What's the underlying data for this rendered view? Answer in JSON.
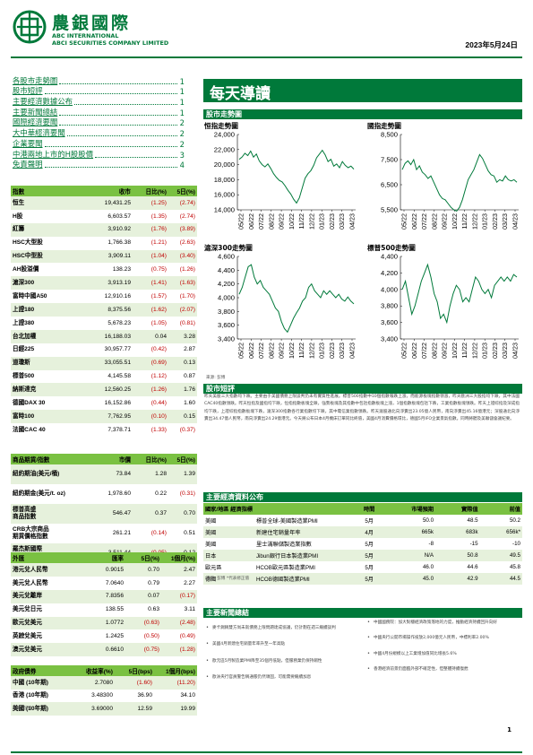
{
  "header": {
    "logo_cn": "農銀國際",
    "logo_en1": "ABC INTERNATIONAL",
    "logo_en2": "ABCI SECURITIES COMPANY LIMITED",
    "date": "2023年5月24日",
    "brand_color": "#00793A"
  },
  "toc": [
    {
      "label": "各股市走勢圖",
      "page": "1"
    },
    {
      "label": "股市短評",
      "page": "1"
    },
    {
      "label": "主要經濟數據公布",
      "page": "1"
    },
    {
      "label": "主要新聞總結",
      "page": "1"
    },
    {
      "label": "國際經濟要聞",
      "page": "2"
    },
    {
      "label": "大中華經濟要聞",
      "page": "2"
    },
    {
      "label": "企業要聞",
      "page": "2"
    },
    {
      "label": "中港兩地上市的H股股價",
      "page": "3"
    },
    {
      "label": "免責聲明",
      "page": "4"
    }
  ],
  "indices": {
    "headers": [
      "指數",
      "收市",
      "日比(%)",
      "5日(%)"
    ],
    "rows": [
      [
        "恒生",
        "19,431.25",
        "(1.25)",
        "(2.74)"
      ],
      [
        "H股",
        "6,603.57",
        "(1.35)",
        "(2.74)"
      ],
      [
        "紅籌",
        "3,910.92",
        "(1.76)",
        "(3.89)"
      ],
      [
        "HSC大型股",
        "1,766.38",
        "(1.21)",
        "(2.63)"
      ],
      [
        "HSC中型股",
        "3,909.11",
        "(1.04)",
        "(3.40)"
      ],
      [
        "AH股溢價",
        "138.23",
        "(0.75)",
        "(1.26)"
      ],
      [
        "滬深300",
        "3,913.19",
        "(1.41)",
        "(1.63)"
      ],
      [
        "富時中國A50",
        "12,910.16",
        "(1.57)",
        "(1.70)"
      ],
      [
        "上證180",
        "8,375.56",
        "(1.62)",
        "(2.07)"
      ],
      [
        "上證380",
        "5,678.23",
        "(1.05)",
        "(0.81)"
      ],
      [
        "台北加權",
        "16,188.03",
        "0.04",
        "3.28"
      ],
      [
        "日經225",
        "30,957.77",
        "(0.42)",
        "2.87"
      ],
      [
        "道瓊斯",
        "33,055.51",
        "(0.69)",
        "0.13"
      ],
      [
        "標普500",
        "4,145.58",
        "(1.12)",
        "0.87"
      ],
      [
        "納斯達克",
        "12,560.25",
        "(1.26)",
        "1.76"
      ],
      [
        "德國DAX 30",
        "16,152.86",
        "(0.44)",
        "1.60"
      ],
      [
        "富時100",
        "7,762.95",
        "(0.10)",
        "0.15"
      ],
      [
        "法國CAC 40",
        "7,378.71",
        "(1.33)",
        "(0.37)"
      ]
    ]
  },
  "commodities": {
    "headers": [
      "商品期貨/指數",
      "市價",
      "日比(%)",
      "5日(%)"
    ],
    "rows": [
      [
        "紐約期油(美元/桶)",
        "73.84",
        "1.28",
        "1.39"
      ],
      [
        "紐約期金(美元/t. oz)",
        "1,978.60",
        "0.22",
        "(0.31)"
      ],
      [
        "標普高盛\n商品指數",
        "546.47",
        "0.37",
        "0.70"
      ],
      [
        "CRB大宗商品\n期貨價格指數",
        "261.21",
        "(0.14)",
        "0.51"
      ],
      [
        "羅杰斯國際\n商品指數",
        "3,511.44",
        "(0.05)",
        "0.12"
      ]
    ]
  },
  "fx": {
    "headers": [
      "外匯",
      "匯率",
      "5日(%)",
      "1個月(%)"
    ],
    "rows": [
      [
        "港元兌人民幣",
        "0.9015",
        "0.70",
        "2.47"
      ],
      [
        "美元兌人民幣",
        "7.0640",
        "0.79",
        "2.27"
      ],
      [
        "美元兌離岸",
        "7.8356",
        "0.07",
        "(0.17)"
      ],
      [
        "美元兌日元",
        "138.55",
        "0.63",
        "3.11"
      ],
      [
        "歐元兌美元",
        "1.0772",
        "(0.63)",
        "(2.48)"
      ],
      [
        "英鎊兌美元",
        "1.2425",
        "(0.50)",
        "(0.49)"
      ],
      [
        "澳元兌美元",
        "0.6610",
        "(0.75)",
        "(1.28)"
      ]
    ]
  },
  "bonds": {
    "headers": [
      "政府債券",
      "收益率(%)",
      "5日(bps)",
      "1個月(bps)"
    ],
    "rows": [
      [
        "中國 (10年期)",
        "2.7080",
        "(1.60)",
        "(11.20)"
      ],
      [
        "香港 (10年期)",
        "3.48300",
        "36.90",
        "34.10"
      ],
      [
        "美國 (10年期)",
        "3.69000",
        "12.59",
        "19.99"
      ]
    ],
    "source": "來源: 彭博"
  },
  "main": {
    "title": "每天導讀",
    "charts_section": "股市走勢圖",
    "charts_source": "來源: 彭博",
    "commentary_section": "股市短評",
    "commentary": "昨天美股三大指數均下跌。主要由于美國債務上限談判仍未有實質性進展。標普500指數中10個指數報跌上漲，而能源板塊指數領漲，昨天歐洲三大股指均下跌，其中法國CAC40指數領跌。昨天恒指及國指均下跌，恒指指數板塊全跌，強勢板塊及其指數中包括指數板塊上漲，1個指數板塊包括下跌，工業指數板塊領跌。昨天上證綜指及深成指均下跌，上證綜指指數板塊下跌，滬深300指數各行業指數均下跌，其中電信業指數領跌。昨天滬股通北向淨賣出23.05億人民幣，南向淨賣出45.16億港元；深股通北向淨賣出34.47億人民幣，南向淨賣出24.29億港元。今天將公布日本4月機床訂單同比終值，美國4月消費價格環比，德國5月IFO企業景氣指數。同時將聽及美聯儲會議紀要。",
    "eco_section": "主要經濟資料公布",
    "eco": {
      "headers": [
        "國家/地區 經濟指標",
        "",
        "時間",
        "市場預期",
        "實際值",
        "前值"
      ],
      "rows": [
        [
          "美國",
          "標普全球-美國製造業PMI",
          "5月",
          "50.0",
          "48.5",
          "50.2"
        ],
        [
          "美國",
          "新建住宅銷量年率",
          "4月",
          "665k",
          "683k",
          "656k*"
        ],
        [
          "美國",
          "里士滿聯儲製造業指數",
          "5月",
          "-8",
          "-15",
          "-10"
        ],
        [
          "日本",
          "Jibun銀行日本製造業PMI",
          "5月",
          "N/A",
          "50.8",
          "49.5"
        ],
        [
          "歐元區",
          "HCOB歐元區製造業PMI",
          "5月",
          "46.0",
          "44.6",
          "45.8"
        ],
        [
          "德國",
          "HCOB德國製造業PMI",
          "5月",
          "45.0",
          "42.9",
          "44.5"
        ]
      ],
      "source": "來源: 彭博  *代表修正值"
    },
    "news_section": "主要新聞總結",
    "news_left": [
      "麥卡錫稱雙方尚未就債務上限問題達成協議，仍計劃在週三繼續談判",
      "美國4月新建住宅銷量年率升至一年高點",
      "歐元區5月製造業PMI降至35個月低點，但服務業仍保持韌性",
      "歐洲央行官員警告稱通脹仍然頑固，可能需要繼續加息"
    ],
    "news_right": [
      "中國國務院：加大對穩經濟政策落地的力度，推動經濟持續回升向好",
      "中國央行公開市場操作投放2,000億元人民幣，中標利率2.00%",
      "中國4月份規模以上工業增加值同比增長5.6%",
      "香港經濟前景仍面臨外部不確定性，但整體持續復甦"
    ]
  },
  "chart_data": [
    {
      "type": "line",
      "title": "恒指走勢圖",
      "ylim": [
        14000,
        24000
      ],
      "yticks": [
        "24,000",
        "22,000",
        "20,000",
        "18,000",
        "16,000",
        "14,000"
      ],
      "xticks": [
        "05/22",
        "06/22",
        "07/22",
        "08/22",
        "09/22",
        "10/22",
        "11/22",
        "12/22",
        "01/23",
        "02/23",
        "03/23",
        "04/23"
      ],
      "values": [
        20700,
        21000,
        21500,
        21200,
        21800,
        21000,
        21400,
        20500,
        20000,
        19700,
        20100,
        19500,
        18800,
        18300,
        17900,
        17700,
        17200,
        16600,
        16100,
        15400,
        14900,
        15600,
        16900,
        18200,
        18800,
        19200,
        19900,
        20900,
        21400,
        21900,
        21300,
        20400,
        20700,
        19800,
        20100,
        19600,
        20400,
        19900,
        19600,
        19800,
        19400
      ]
    },
    {
      "type": "line",
      "title": "國指走勢圖",
      "ylim": [
        5500,
        8500
      ],
      "yticks": [
        "8,500",
        "7,500",
        "6,500",
        "5,500"
      ],
      "xticks": [
        "05/22",
        "06/22",
        "07/22",
        "08/22",
        "09/22",
        "10/22",
        "11/22",
        "12/22",
        "01/23",
        "02/23",
        "03/23",
        "04/23"
      ],
      "values": [
        7100,
        7350,
        7450,
        7300,
        7500,
        7100,
        7250,
        7000,
        6900,
        6750,
        6850,
        6600,
        6350,
        6100,
        5950,
        5900,
        5750,
        5600,
        5500,
        5450,
        5600,
        5900,
        6300,
        6700,
        6900,
        7100,
        7400,
        7700,
        7550,
        7300,
        7050,
        6900,
        6850,
        6600,
        6700,
        6650,
        6850,
        6700,
        6650,
        6700,
        6600
      ]
    },
    {
      "type": "line",
      "title": "滬深300走勢圖",
      "ylim": [
        3400,
        4600
      ],
      "yticks": [
        "4,600",
        "4,400",
        "4,200",
        "4,000",
        "3,800",
        "3,600",
        "3,400"
      ],
      "xticks": [
        "05/22",
        "06/22",
        "07/22",
        "08/22",
        "09/22",
        "10/22",
        "11/22",
        "12/22",
        "01/23",
        "02/23",
        "03/23",
        "04/23"
      ],
      "values": [
        4050,
        4150,
        4300,
        4450,
        4480,
        4300,
        4200,
        4250,
        4150,
        4100,
        4050,
        3950,
        3850,
        3800,
        3650,
        3550,
        3500,
        3600,
        3700,
        3780,
        3850,
        3950,
        4000,
        4150,
        4200,
        4100,
        4050,
        4000,
        4100,
        4050,
        4100,
        4050,
        4000,
        4050,
        3980,
        3950,
        4010,
        3950,
        3910
      ]
    },
    {
      "type": "line",
      "title": "標普500走勢圖",
      "ylim": [
        3400,
        4400
      ],
      "yticks": [
        "4,400",
        "4,200",
        "4,000",
        "3,800",
        "3,600",
        "3,400"
      ],
      "xticks": [
        "05/22",
        "06/22",
        "07/22",
        "08/22",
        "09/22",
        "10/22",
        "11/22",
        "12/22",
        "01/23",
        "02/23",
        "03/23",
        "04/23"
      ],
      "values": [
        4000,
        4100,
        3900,
        3700,
        3800,
        3950,
        4100,
        4200,
        4300,
        4150,
        3950,
        3850,
        3650,
        3700,
        3600,
        3800,
        3950,
        4050,
        4000,
        3850,
        3900,
        3850,
        4000,
        4150,
        4100,
        4000,
        3950,
        4000,
        3900,
        4050,
        4100,
        4150,
        4100,
        4150,
        4100,
        4180,
        4150
      ]
    }
  ],
  "footer": {
    "page": "1"
  }
}
